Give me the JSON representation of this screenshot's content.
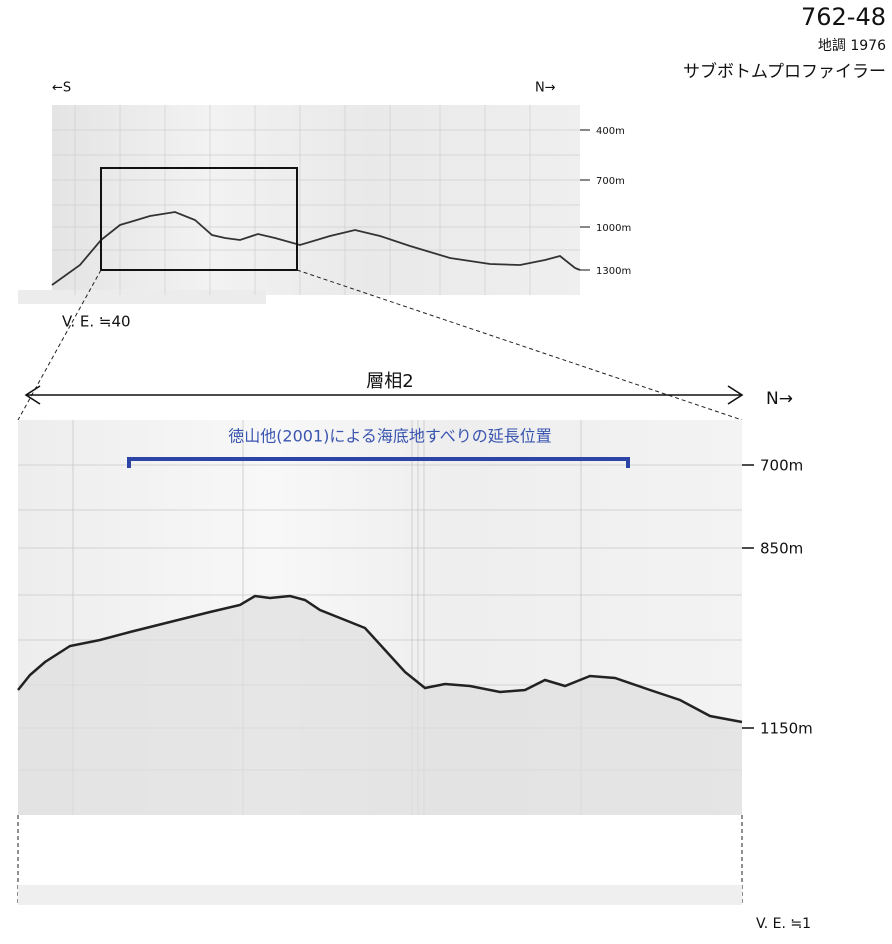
{
  "header": {
    "code": "762-48",
    "survey": "地調 1976",
    "method": "サブボトムプロファイラー"
  },
  "overview": {
    "south": "←S",
    "north": "N→",
    "depths": [
      "400m",
      "700m",
      "1000m",
      "1300m"
    ],
    "exaggeration": "V. E. ≒40"
  },
  "detail": {
    "facies": "層相2",
    "north": "N→",
    "annotation": "徳山他(2001)による海底地すべりの延長位置",
    "depths": [
      "700m",
      "850m",
      "1150m"
    ],
    "exaggeration": "V. E. ≒1"
  }
}
